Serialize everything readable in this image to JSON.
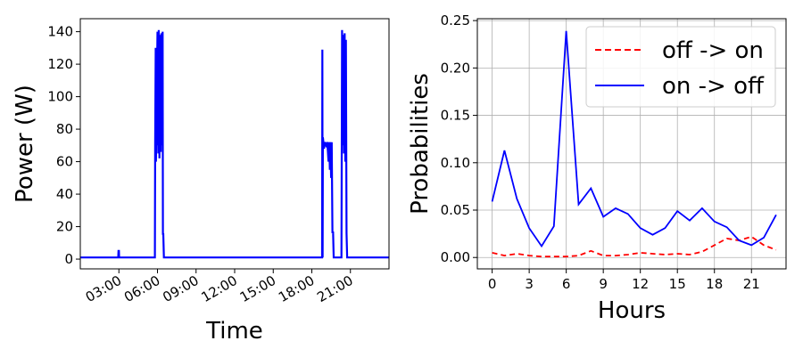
{
  "chart_data": [
    {
      "type": "line",
      "xlabel": "Time",
      "ylabel": "Power (W)",
      "x_tick_labels": [
        "03:00",
        "06:00",
        "09:00",
        "12:00",
        "15:00",
        "18:00",
        "21:00"
      ],
      "x_tick_hours": [
        3,
        6,
        9,
        12,
        15,
        18,
        21
      ],
      "xlim_hours": [
        0,
        24
      ],
      "ylim": [
        -6,
        148
      ],
      "y_ticks": [
        0,
        20,
        40,
        60,
        80,
        100,
        120,
        140
      ],
      "grid": false,
      "series": [
        {
          "color": "#0000ff",
          "x_hours": [
            0,
            2.95,
            2.97,
            3.0,
            3.02,
            5.8,
            5.82,
            5.86,
            5.88,
            6.0,
            6.02,
            6.04,
            6.06,
            6.1,
            6.15,
            6.2,
            6.25,
            6.3,
            6.35,
            6.4,
            6.42,
            6.45,
            6.5,
            6.55,
            6.6,
            6.62,
            6.65,
            6.7,
            6.75,
            6.8,
            6.85,
            6.87,
            6.9,
            6.95,
            7.0,
            7.05,
            7.1,
            18.8,
            18.82,
            18.84,
            18.86,
            18.9,
            18.95,
            19.0,
            19.1,
            19.2,
            19.3,
            19.35,
            19.4,
            19.45,
            19.5,
            19.55,
            19.6,
            19.65,
            19.7,
            19.75,
            19.8,
            19.85,
            19.9,
            19.95,
            20.0,
            20.3,
            20.35,
            20.4,
            20.45,
            20.5,
            20.55,
            20.6,
            20.65,
            20.7,
            20.75,
            20.8,
            20.85,
            20.9,
            20.95,
            21.0,
            24
          ],
          "values": [
            1,
            1,
            5,
            5,
            1,
            1,
            70,
            130,
            60,
            140,
            70,
            135,
            65,
            141,
            62,
            138,
            66,
            139,
            70,
            140,
            15,
            16,
            1,
            1,
            1,
            1,
            1,
            1,
            1,
            1,
            1,
            1,
            1,
            1,
            1,
            1,
            1,
            1,
            129,
            1,
            75,
            72,
            68,
            72,
            70,
            72,
            60,
            72,
            55,
            72,
            50,
            72,
            16,
            17,
            1,
            1,
            1,
            1,
            1,
            1,
            1,
            1,
            141,
            70,
            138,
            65,
            139,
            60,
            135,
            16,
            1,
            1,
            1,
            1,
            1,
            1,
            1
          ]
        }
      ]
    },
    {
      "type": "line",
      "xlabel": "Hours",
      "ylabel": "Probabilities",
      "xlim": [
        -1.2,
        23.8
      ],
      "ylim": [
        -0.012,
        0.252
      ],
      "x_ticks": [
        0,
        3,
        6,
        9,
        12,
        15,
        18,
        21
      ],
      "y_ticks": [
        0.0,
        0.05,
        0.1,
        0.15,
        0.2,
        0.25
      ],
      "y_tick_labels": [
        "0.00",
        "0.05",
        "0.10",
        "0.15",
        "0.20",
        "0.25"
      ],
      "grid": true,
      "legend_position": "top-right",
      "categories": [
        0,
        1,
        2,
        3,
        4,
        5,
        6,
        7,
        8,
        9,
        10,
        11,
        12,
        13,
        14,
        15,
        16,
        17,
        18,
        19,
        20,
        21,
        22,
        23
      ],
      "series": [
        {
          "name": "off -> on",
          "color": "#ff0000",
          "style": "dashed",
          "values": [
            0.005,
            0.002,
            0.004,
            0.002,
            0.001,
            0.001,
            0.001,
            0.002,
            0.007,
            0.002,
            0.002,
            0.003,
            0.005,
            0.004,
            0.003,
            0.004,
            0.003,
            0.006,
            0.013,
            0.02,
            0.018,
            0.022,
            0.013,
            0.008
          ]
        },
        {
          "name": "on -> off",
          "color": "#0000ff",
          "style": "solid",
          "values": [
            0.059,
            0.113,
            0.062,
            0.031,
            0.012,
            0.033,
            0.239,
            0.056,
            0.073,
            0.043,
            0.052,
            0.046,
            0.031,
            0.024,
            0.031,
            0.049,
            0.039,
            0.052,
            0.038,
            0.032,
            0.018,
            0.013,
            0.021,
            0.045
          ]
        }
      ]
    }
  ]
}
